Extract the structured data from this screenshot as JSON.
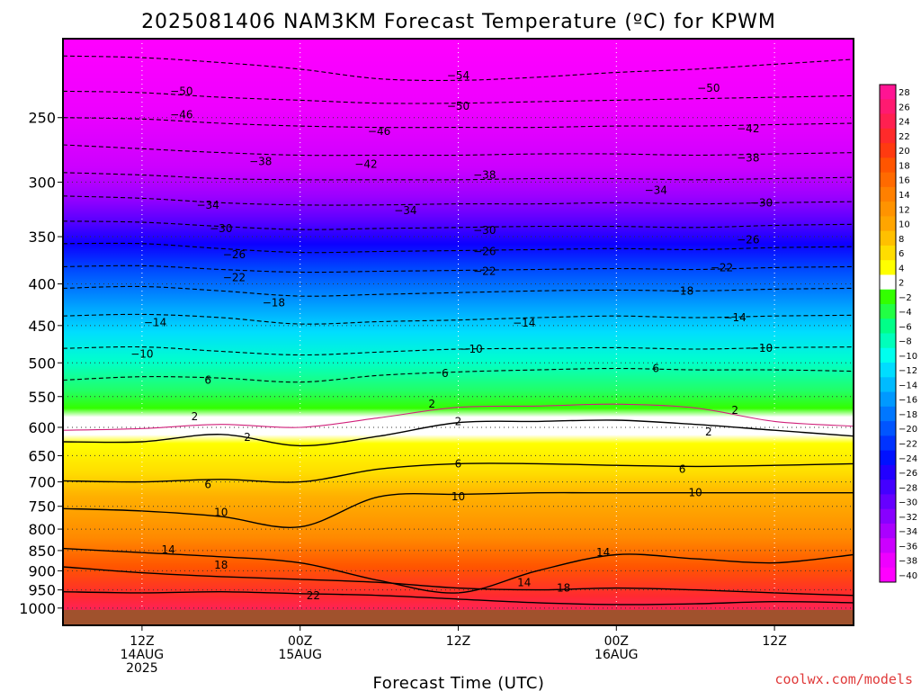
{
  "chart_data": {
    "type": "heatmap",
    "title": "2025081406 NAM3KM Forecast Temperature (ºC) for KPWM",
    "xlabel": "Forecast Time (UTC)",
    "ylabel": "",
    "credit": "coolwx.com/models",
    "y_scale": "log",
    "ylim": [
      1050,
      200
    ],
    "xlim_hours": [
      -6,
      54
    ],
    "grid": true,
    "legend_placement": "right",
    "y_ticks": [
      250,
      300,
      350,
      400,
      450,
      500,
      550,
      600,
      650,
      700,
      750,
      800,
      850,
      900,
      950,
      1000
    ],
    "x_ticks": [
      {
        "hour": 0,
        "lines": [
          "12Z",
          "14AUG",
          "2025"
        ]
      },
      {
        "hour": 12,
        "lines": [
          "00Z",
          "15AUG"
        ]
      },
      {
        "hour": 24,
        "lines": [
          "12Z"
        ]
      },
      {
        "hour": 36,
        "lines": [
          "00Z",
          "16AUG"
        ]
      },
      {
        "hour": 48,
        "lines": [
          "12Z"
        ]
      }
    ],
    "colorbar": {
      "levels": [
        28,
        26,
        24,
        22,
        20,
        18,
        16,
        14,
        12,
        10,
        8,
        6,
        4,
        2,
        -2,
        -4,
        -6,
        -8,
        -10,
        -12,
        -14,
        -16,
        -18,
        -20,
        -22,
        -24,
        -26,
        -28,
        -30,
        -32,
        -34,
        -36,
        -38,
        -40
      ],
      "colors": [
        "#ff1493",
        "#ff1a70",
        "#ff2050",
        "#ff2a2a",
        "#ff3a10",
        "#ff5500",
        "#ff6a00",
        "#ff8000",
        "#ff9300",
        "#ffa500",
        "#ffc000",
        "#ffdd00",
        "#ffff00",
        "#ffffff",
        "#33ff00",
        "#22ff44",
        "#00ff88",
        "#00ffbb",
        "#00ffee",
        "#00ddff",
        "#00bbff",
        "#0099ff",
        "#0077ff",
        "#0055ff",
        "#0033ff",
        "#0011ff",
        "#2200ff",
        "#4400ff",
        "#6600ff",
        "#8800ff",
        "#aa00ff",
        "#cc00ff",
        "#ee00ff",
        "#ff00ff"
      ]
    },
    "x_hours": [
      -6,
      0,
      6,
      12,
      18,
      24,
      30,
      36,
      42,
      48,
      54
    ],
    "isotherms": [
      {
        "value": 22,
        "pressures": [
          955,
          958,
          955,
          960,
          965,
          975,
          985,
          990,
          988,
          982,
          985
        ]
      },
      {
        "value": 18,
        "pressures": [
          890,
          905,
          915,
          922,
          930,
          945,
          950,
          945,
          950,
          958,
          965
        ]
      },
      {
        "value": 14,
        "pressures": [
          845,
          855,
          865,
          880,
          925,
          958,
          900,
          860,
          870,
          880,
          860
        ]
      },
      {
        "value": 10,
        "pressures": [
          755,
          760,
          772,
          795,
          730,
          725,
          722,
          722,
          722,
          722,
          722
        ]
      },
      {
        "value": 6,
        "pressures": [
          698,
          700,
          695,
          700,
          675,
          665,
          665,
          668,
          670,
          668,
          665
        ]
      },
      {
        "value": 2,
        "pressures": [
          625,
          625,
          612,
          632,
          615,
          592,
          590,
          588,
          595,
          605,
          615
        ]
      },
      {
        "value": -2,
        "pressures": [
          605,
          602,
          595,
          600,
          584,
          567,
          565,
          562,
          568,
          590,
          598
        ]
      },
      {
        "value": -6,
        "pressures": [
          525,
          520,
          522,
          528,
          518,
          513,
          510,
          508,
          510,
          510,
          512
        ]
      },
      {
        "value": -10,
        "pressures": [
          480,
          478,
          484,
          489,
          485,
          481,
          480,
          479,
          481,
          479,
          478
        ]
      },
      {
        "value": -14,
        "pressures": [
          438,
          436,
          440,
          448,
          445,
          443,
          440,
          438,
          440,
          438,
          437
        ]
      },
      {
        "value": -18,
        "pressures": [
          405,
          403,
          408,
          414,
          412,
          410,
          408,
          407,
          408,
          406,
          405
        ]
      },
      {
        "value": -22,
        "pressures": [
          381,
          380,
          384,
          387,
          386,
          385,
          384,
          383,
          384,
          382,
          381
        ]
      },
      {
        "value": -26,
        "pressures": [
          357,
          357,
          362,
          366,
          365,
          364,
          363,
          362,
          363,
          361,
          360
        ]
      },
      {
        "value": -30,
        "pressures": [
          335,
          336,
          340,
          343,
          342,
          341,
          340,
          340,
          341,
          339,
          338
        ]
      },
      {
        "value": -34,
        "pressures": [
          312,
          314,
          318,
          320,
          320,
          319,
          319,
          318,
          319,
          318,
          317
        ]
      },
      {
        "value": -38,
        "pressures": [
          292,
          294,
          297,
          298,
          298,
          298,
          297,
          297,
          298,
          297,
          296
        ]
      },
      {
        "value": -42,
        "pressures": [
          270,
          273,
          276,
          278,
          278,
          278,
          277,
          277,
          278,
          277,
          276
        ]
      },
      {
        "value": -46,
        "pressures": [
          250,
          251,
          254,
          256,
          257,
          257,
          257,
          256,
          256,
          255,
          254
        ]
      },
      {
        "value": -50,
        "pressures": [
          232,
          233,
          236,
          238,
          240,
          240,
          239,
          238,
          237,
          236,
          235
        ]
      },
      {
        "value": -54,
        "pressures": [
          210,
          211,
          214,
          218,
          224,
          225,
          223,
          220,
          218,
          215,
          212
        ]
      }
    ],
    "contour_labels": [
      {
        "text": "-50",
        "hour": 3,
        "p": 232
      },
      {
        "text": "-54",
        "hour": 24,
        "p": 222
      },
      {
        "text": "-50",
        "hour": 43,
        "p": 230
      },
      {
        "text": "-46",
        "hour": 3,
        "p": 248
      },
      {
        "text": "-50",
        "hour": 24,
        "p": 242
      },
      {
        "text": "-46",
        "hour": 18,
        "p": 260
      },
      {
        "text": "-42",
        "hour": 46,
        "p": 258
      },
      {
        "text": "-38",
        "hour": 9,
        "p": 283
      },
      {
        "text": "-42",
        "hour": 17,
        "p": 285
      },
      {
        "text": "-38",
        "hour": 46,
        "p": 280
      },
      {
        "text": "-38",
        "hour": 26,
        "p": 294
      },
      {
        "text": "-34",
        "hour": 39,
        "p": 307
      },
      {
        "text": "-34",
        "hour": 5,
        "p": 320
      },
      {
        "text": "-34",
        "hour": 20,
        "p": 325
      },
      {
        "text": "-30",
        "hour": 47,
        "p": 318
      },
      {
        "text": "-30",
        "hour": 6,
        "p": 342
      },
      {
        "text": "-30",
        "hour": 26,
        "p": 344
      },
      {
        "text": "-26",
        "hour": 46,
        "p": 353
      },
      {
        "text": "-26",
        "hour": 7,
        "p": 368
      },
      {
        "text": "-26",
        "hour": 26,
        "p": 365
      },
      {
        "text": "-22",
        "hour": 7,
        "p": 393
      },
      {
        "text": "-22",
        "hour": 26,
        "p": 386
      },
      {
        "text": "-22",
        "hour": 44,
        "p": 382
      },
      {
        "text": "-18",
        "hour": 10,
        "p": 422
      },
      {
        "text": "-18",
        "hour": 41,
        "p": 408
      },
      {
        "text": "-14",
        "hour": 1,
        "p": 446
      },
      {
        "text": "-14",
        "hour": 29,
        "p": 447
      },
      {
        "text": "-14",
        "hour": 45,
        "p": 440
      },
      {
        "text": "-10",
        "hour": 0,
        "p": 488
      },
      {
        "text": "-10",
        "hour": 25,
        "p": 481
      },
      {
        "text": "-10",
        "hour": 47,
        "p": 480
      },
      {
        "text": "6",
        "hour": 5,
        "p": 525
      },
      {
        "text": "6",
        "hour": 23,
        "p": 515
      },
      {
        "text": "6",
        "hour": 39,
        "p": 508
      },
      {
        "text": "2",
        "hour": 4,
        "p": 582
      },
      {
        "text": "2",
        "hour": 22,
        "p": 562
      },
      {
        "text": "2",
        "hour": 45,
        "p": 572
      },
      {
        "text": "2",
        "hour": 24,
        "p": 590
      },
      {
        "text": "2",
        "hour": 8,
        "p": 617
      },
      {
        "text": "2",
        "hour": 43,
        "p": 608
      },
      {
        "text": "6",
        "hour": 24,
        "p": 665
      },
      {
        "text": "6",
        "hour": 5,
        "p": 705
      },
      {
        "text": "6",
        "hour": 41,
        "p": 675
      },
      {
        "text": "10",
        "hour": 24,
        "p": 730
      },
      {
        "text": "10",
        "hour": 6,
        "p": 763
      },
      {
        "text": "10",
        "hour": 42,
        "p": 722
      },
      {
        "text": "14",
        "hour": 2,
        "p": 848
      },
      {
        "text": "14",
        "hour": 29,
        "p": 930
      },
      {
        "text": "14",
        "hour": 35,
        "p": 855
      },
      {
        "text": "18",
        "hour": 6,
        "p": 885
      },
      {
        "text": "18",
        "hour": 32,
        "p": 945
      },
      {
        "text": "22",
        "hour": 13,
        "p": 965
      }
    ]
  }
}
